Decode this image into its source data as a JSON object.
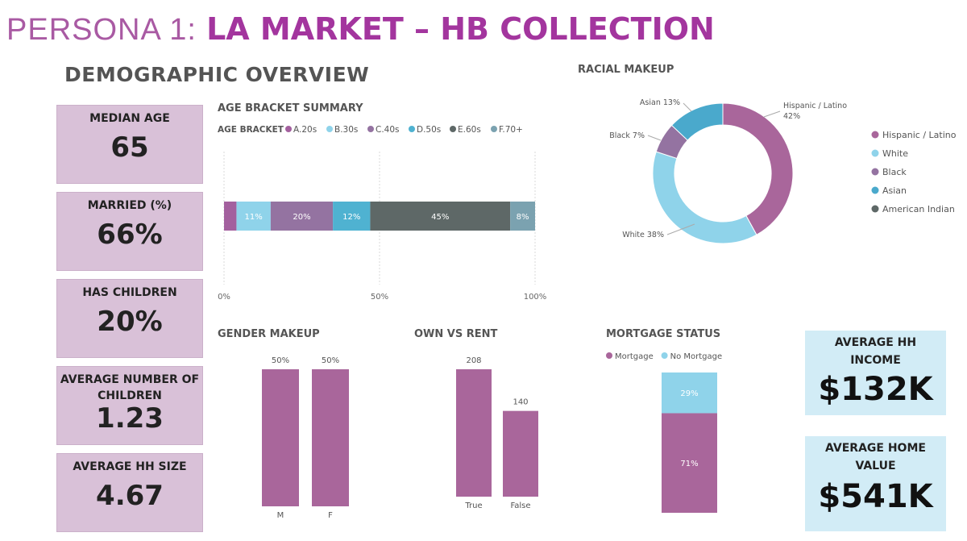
{
  "header": {
    "title_prefix": "PERSONA 1:",
    "title_main": "LA MARKET – HB COLLECTION",
    "section": "DEMOGRAPHIC OVERVIEW"
  },
  "kpis_left": [
    {
      "label": "MEDIAN AGE",
      "value": "65"
    },
    {
      "label": "MARRIED (%)",
      "value": "66%"
    },
    {
      "label": "HAS CHILDREN",
      "value": "20%"
    },
    {
      "label": "AVERAGE NUMBER OF CHILDREN",
      "value": "1.23"
    },
    {
      "label": "AVERAGE HH SIZE",
      "value": "4.67"
    }
  ],
  "kpis_right": [
    {
      "label": "AVERAGE HH INCOME",
      "value": "$132K"
    },
    {
      "label": "AVERAGE HOME VALUE",
      "value": "$541K"
    }
  ],
  "colors": {
    "purple_title": "#a3359e",
    "kpi_left_bg": "#d9c1d8",
    "kpi_right_bg": "#d2ecf6",
    "bar_purple": "#a9669b"
  },
  "chart_data": [
    {
      "type": "bar",
      "orientation": "horizontal-stacked-100",
      "title": "AGE BRACKET SUMMARY",
      "legend_title": "AGE BRACKET",
      "categories": [
        "A.20s",
        "B.30s",
        "C.40s",
        "D.50s",
        "E.60s",
        "F.70+"
      ],
      "values": [
        4,
        11,
        20,
        12,
        45,
        8
      ],
      "value_labels": [
        "",
        "11%",
        "20%",
        "12%",
        "45%",
        "8%"
      ],
      "colors": [
        "#a3609e",
        "#8fd3ea",
        "#9473a1",
        "#4fb2d1",
        "#5e6867",
        "#7ba2b0"
      ],
      "x_ticks": [
        "0%",
        "50%",
        "100%"
      ],
      "legend_placement": "top"
    },
    {
      "type": "pie",
      "title": "RACIAL MAKEUP",
      "categories": [
        "Hispanic / Latino",
        "White",
        "Black",
        "Asian",
        "American Indian"
      ],
      "values": [
        42,
        38,
        7,
        13,
        0
      ],
      "slice_labels": [
        "Hispanic / Latino\n42%",
        "White 38%",
        "Black 7%",
        "Asian 13%",
        ""
      ],
      "colors": [
        "#a9669b",
        "#8fd3ea",
        "#9473a1",
        "#4aa9cc",
        "#5e6867"
      ],
      "legend_placement": "right"
    },
    {
      "type": "bar",
      "title": "GENDER MAKEUP",
      "categories": [
        "M",
        "F"
      ],
      "values": [
        50,
        50
      ],
      "value_labels": [
        "50%",
        "50%"
      ],
      "ylim": [
        0,
        50
      ]
    },
    {
      "type": "bar",
      "title": "OWN VS RENT",
      "categories": [
        "True",
        "False"
      ],
      "values": [
        208,
        140
      ],
      "value_labels": [
        "208",
        "140"
      ],
      "ylim": [
        0,
        208
      ]
    },
    {
      "type": "bar",
      "orientation": "vertical-stacked-100",
      "title": "MORTGAGE STATUS",
      "categories": [
        "Mortgage",
        "No Mortgage"
      ],
      "values": [
        71,
        29
      ],
      "value_labels": [
        "71%",
        "29%"
      ],
      "colors": [
        "#a9669b",
        "#8fd3ea"
      ],
      "legend_placement": "top"
    }
  ]
}
